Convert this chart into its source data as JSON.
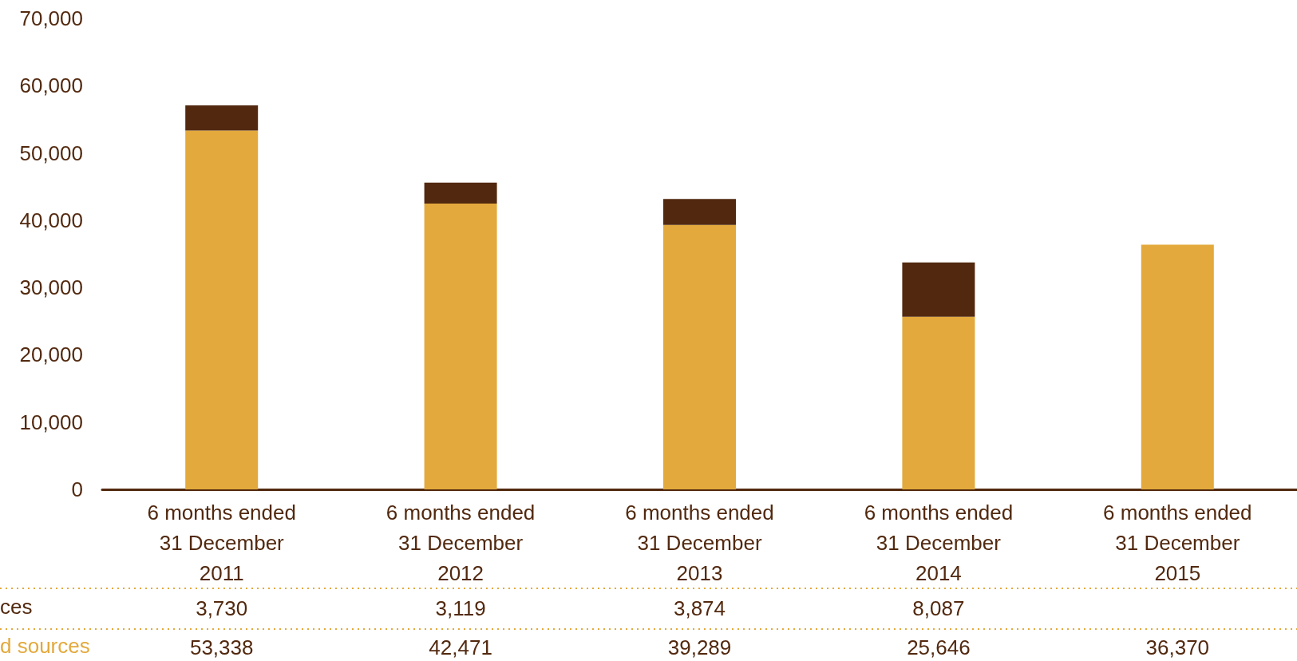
{
  "chart_data": {
    "type": "bar",
    "stacked": true,
    "categories": [
      "6 months ended\n31 December\n2011",
      "6 months ended\n31 December\n2012",
      "6 months ended\n31 December\n2013",
      "6 months ended\n31 December\n2014",
      "6 months ended\n31 December\n2015"
    ],
    "series": [
      {
        "name": "d sources",
        "color": "#e3a93c",
        "values": [
          53338,
          42471,
          39289,
          25646,
          36370
        ],
        "value_labels": [
          "53,338",
          "42,471",
          "39,289",
          "25,646",
          "36,370"
        ]
      },
      {
        "name": "ces",
        "color": "#52290f",
        "values": [
          3730,
          3119,
          3874,
          8087,
          null
        ],
        "value_labels": [
          "3,730",
          "3,119",
          "3,874",
          "8,087",
          null
        ]
      }
    ],
    "ylim": [
      0,
      70000
    ],
    "yticks": [
      {
        "value": 0,
        "label": "0"
      },
      {
        "value": 10000,
        "label": "10,000"
      },
      {
        "value": 20000,
        "label": "20,000"
      },
      {
        "value": 30000,
        "label": "30,000"
      },
      {
        "value": 40000,
        "label": "40,000"
      },
      {
        "value": 50000,
        "label": "50,000"
      },
      {
        "value": 60000,
        "label": "60,000"
      },
      {
        "value": 70000,
        "label": "70,000"
      }
    ],
    "grid": false,
    "legend": false
  }
}
